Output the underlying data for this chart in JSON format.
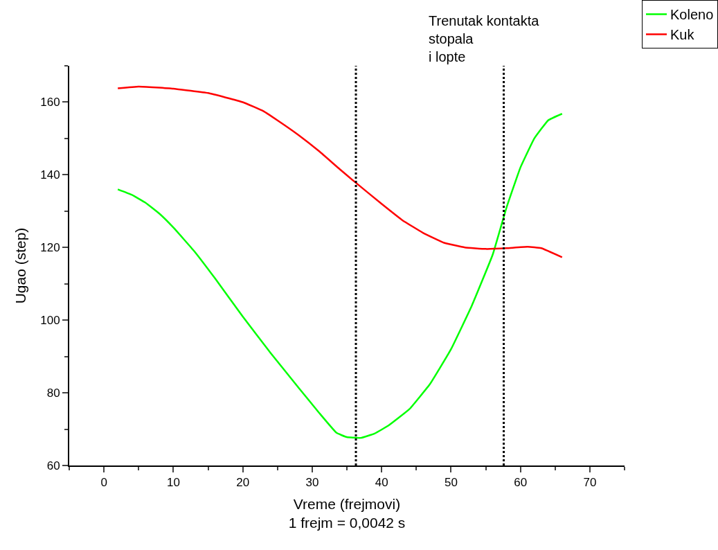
{
  "chart_data": {
    "type": "line",
    "xlabel": "Vreme (frejmovi)\n1 frejm = 0,0042 s",
    "ylabel": "Ugao (step)",
    "xlim": [
      -5,
      75
    ],
    "xticks": [
      0,
      10,
      20,
      30,
      40,
      50,
      60,
      70
    ],
    "ylim": [
      60,
      170
    ],
    "yticks": [
      60,
      80,
      100,
      120,
      140,
      160
    ],
    "grid": false,
    "legend": "top right",
    "marker": "none",
    "line_style": "solid",
    "series": [
      {
        "name": "Koleno",
        "color": "#00ff00",
        "x": [
          2,
          4,
          6,
          8,
          10,
          13,
          16,
          20,
          24,
          28,
          31,
          33.5,
          35,
          37,
          39,
          41,
          44,
          47,
          50,
          53,
          56,
          58,
          60,
          62,
          64,
          66
        ],
        "values": [
          136,
          134.5,
          132.3,
          129.3,
          125.5,
          119,
          111.5,
          101,
          91,
          81.5,
          74.5,
          69,
          67.8,
          67.6,
          68.8,
          71,
          75.5,
          82.5,
          92,
          104,
          118,
          131,
          142,
          150,
          155,
          156.8
        ]
      },
      {
        "name": "Kuk",
        "color": "#ff0000",
        "x": [
          2,
          5,
          10,
          15,
          20,
          23,
          25,
          28,
          31,
          34,
          36.3,
          40,
          43,
          46,
          49,
          52,
          55,
          58,
          61,
          63,
          66
        ],
        "values": [
          163.8,
          164.3,
          163.7,
          162.5,
          160,
          157.5,
          155,
          151,
          146.5,
          141.5,
          137.8,
          132,
          127.5,
          124,
          121.3,
          120,
          119.6,
          119.8,
          120.2,
          119.8,
          117.3
        ]
      }
    ],
    "ref_lines": [
      {
        "axis": "x",
        "value": 36.3,
        "color": "#000000",
        "line_style": "dotted"
      },
      {
        "axis": "x",
        "value": 57.6,
        "color": "#000000",
        "line_style": "dotted"
      }
    ],
    "annotations": [
      "Trenutak kontakta\nstopala\ni lopte"
    ]
  }
}
